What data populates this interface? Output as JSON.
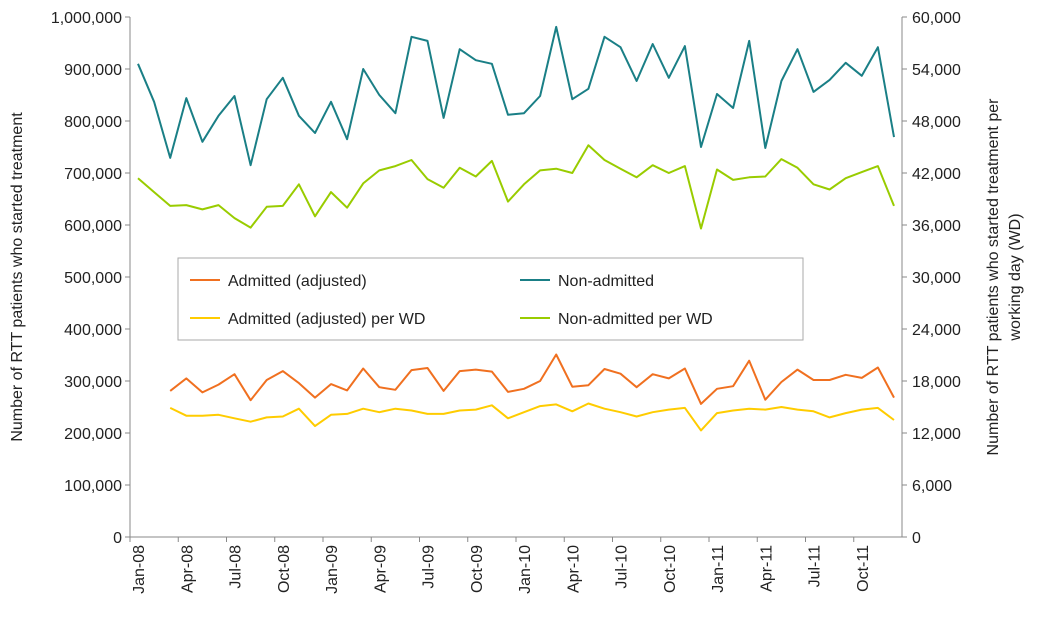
{
  "chart_data": {
    "type": "line",
    "ylabel": "Number of RTT patients who started treatment",
    "y2label": [
      "Number of RTT patients who started treatment per",
      "working day (WD)"
    ],
    "categories": [
      "Jan-08",
      null,
      null,
      "Apr-08",
      null,
      null,
      "Jul-08",
      null,
      null,
      "Oct-08",
      null,
      null,
      "Jan-09",
      null,
      null,
      "Apr-09",
      null,
      null,
      "Jul-09",
      null,
      null,
      "Oct-09",
      null,
      null,
      "Jan-10",
      null,
      null,
      "Apr-10",
      null,
      null,
      "Jul-10",
      null,
      null,
      "Oct-10",
      null,
      null,
      "Jan-11",
      null,
      null,
      "Apr-11",
      null,
      null,
      "Jul-11",
      null,
      null,
      "Oct-11",
      null,
      null
    ],
    "ylim": [
      0,
      1000000
    ],
    "yticks": [
      0,
      {
        "value": 100000,
        "label": "100,000"
      },
      {
        "value": 200000,
        "label": "200,000"
      },
      {
        "value": 300000,
        "label": "300,000"
      },
      {
        "value": 400000,
        "label": "400,000"
      },
      {
        "value": 500000,
        "label": "500,000"
      },
      {
        "value": 600000,
        "label": "600,000"
      },
      {
        "value": 700000,
        "label": "700,000"
      },
      {
        "value": 800000,
        "label": "800,000"
      },
      {
        "value": 900000,
        "label": "900,000"
      },
      {
        "value": 1000000,
        "label": "1,000,000"
      }
    ],
    "y2lim": [
      0,
      60000
    ],
    "y2ticks": [
      0,
      {
        "value": 6000,
        "label": "6,000"
      },
      {
        "value": 12000,
        "label": "12,000"
      },
      {
        "value": 18000,
        "label": "18,000"
      },
      {
        "value": 24000,
        "label": "24,000"
      },
      {
        "value": 30000,
        "label": "30,000"
      },
      {
        "value": 36000,
        "label": "36,000"
      },
      {
        "value": 42000,
        "label": "42,000"
      },
      {
        "value": 48000,
        "label": "48,000"
      },
      {
        "value": 54000,
        "label": "54,000"
      },
      {
        "value": 60000,
        "label": "60,000"
      }
    ],
    "grid": false,
    "series": [
      {
        "name": "Admitted (adjusted)",
        "color": "#f07020",
        "values": [
          null,
          null,
          281000,
          305000,
          278000,
          293000,
          313000,
          263000,
          302000,
          319000,
          296000,
          268000,
          294000,
          282000,
          324000,
          288000,
          283000,
          321000,
          325000,
          281000,
          319000,
          322000,
          318000,
          279000,
          285000,
          300000,
          351000,
          289000,
          292000,
          323000,
          314000,
          288000,
          313000,
          305000,
          324000,
          256000,
          285000,
          290000,
          339000,
          264000,
          298000,
          322000,
          302000,
          302000,
          312000,
          306000,
          326000,
          268000
        ]
      },
      {
        "name": "Non-admitted",
        "color": "#1a7f86",
        "values": [
          910000,
          837000,
          729000,
          844000,
          760000,
          810000,
          848000,
          715000,
          842000,
          883000,
          810000,
          777000,
          837000,
          765000,
          900000,
          850000,
          815000,
          962000,
          954000,
          806000,
          938000,
          917000,
          910000,
          812000,
          815000,
          848000,
          981000,
          842000,
          862000,
          962000,
          942000,
          877000,
          948000,
          883000,
          944000,
          750000,
          852000,
          825000,
          954000,
          748000,
          877000,
          938000,
          856000,
          879000,
          912000,
          887000,
          942000,
          769000
        ]
      },
      {
        "name": "Admitted (adjusted) per WD",
        "color": "#ffcc00",
        "axis": "y2",
        "values": [
          null,
          null,
          14900,
          14000,
          14000,
          14100,
          13700,
          13300,
          13800,
          13900,
          14800,
          12800,
          14100,
          14200,
          14800,
          14400,
          14800,
          14600,
          14200,
          14200,
          14600,
          14700,
          15200,
          13700,
          14400,
          15100,
          15300,
          14500,
          15400,
          14800,
          14400,
          13900,
          14400,
          14700,
          14900,
          12300,
          14300,
          14600,
          14800,
          14700,
          15000,
          14700,
          14500,
          13800,
          14300,
          14700,
          14900,
          13500
        ]
      },
      {
        "name": "Non-admitted per WD",
        "color": "#99cc00",
        "axis": "y2",
        "values": [
          41400,
          39800,
          38200,
          38300,
          37800,
          38300,
          36800,
          35700,
          38100,
          38200,
          40700,
          37000,
          39800,
          38000,
          40800,
          42300,
          42800,
          43500,
          41300,
          40300,
          42600,
          41600,
          43400,
          38700,
          40700,
          42300,
          42500,
          42000,
          45200,
          43500,
          42500,
          41500,
          42900,
          42000,
          42800,
          35600,
          42400,
          41200,
          41500,
          41600,
          43600,
          42600,
          40700,
          40100,
          41400,
          42100,
          42800,
          38200
        ]
      }
    ]
  }
}
